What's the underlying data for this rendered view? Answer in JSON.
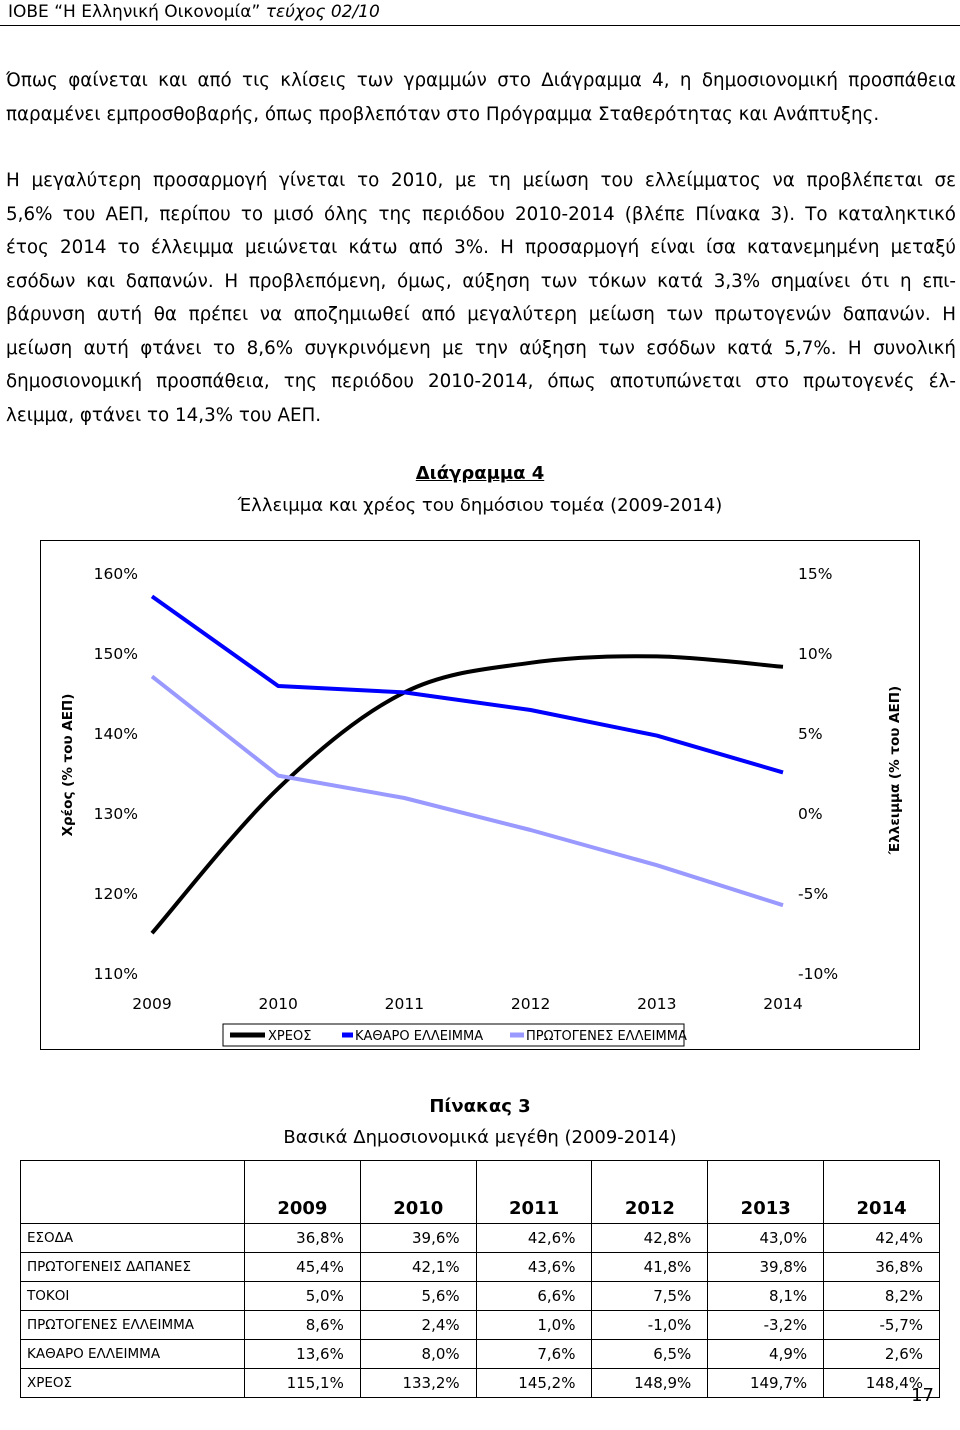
{
  "header": {
    "publication": "ΙΟΒΕ “Η Ελληνική Οικονομία”",
    "issue": "τεύχος 02/10"
  },
  "paragraphs": [
    {
      "lines": [
        "Όπως φαίνεται και από τις κλίσεις των γραμμών στο Διάγραμμα 4, η δημοσιονομική προσπάθεια",
        "παραμένει εμπροσθοβαρής, όπως προβλεπόταν στο Πρόγραμμα Σταθερότητας και Ανάπτυξης."
      ]
    },
    {
      "lines": [
        "Η μεγαλύτερη προσαρμογή γίνεται το 2010, με τη μείωση του ελλείμματος να προβλέπεται σε",
        "5,6% του ΑΕΠ, περίπου το μισό όλης της περιόδου 2010-2014 (βλέπε Πίνακα 3). Το καταληκτικό",
        "έτος 2014 το έλλειμμα μειώνεται κάτω από 3%. Η προσαρμογή είναι ίσα κατανεμημένη μεταξύ",
        "εσόδων και δαπανών. Η προβλεπόμενη, όμως, αύξηση των τόκων κατά 3,3% σημαίνει ότι η επι-",
        "βάρυνση αυτή θα πρέπει να αποζημιωθεί από μεγαλύτερη μείωση των πρωτογενών δαπανών. Η",
        "μείωση αυτή φτάνει το 8,6% συγκρινόμενη με την αύξηση των εσόδων κατά 5,7%. Η συνολική",
        "δημοσιονομική προσπάθεια, της περιόδου 2010-2014, όπως αποτυπώνεται στο πρωτογενές έλ-",
        "λειμμα, φτάνει το 14,3% του ΑΕΠ."
      ]
    }
  ],
  "figure": {
    "label": "Διάγραμμα 4",
    "caption": "Έλλειμμα και χρέος του δημόσιου τομέα (2009-2014)"
  },
  "chart_data": {
    "type": "line",
    "x": [
      "2009",
      "2010",
      "2011",
      "2012",
      "2013",
      "2014"
    ],
    "y_left": {
      "label": "Χρέος (% του ΑΕΠ)",
      "ticks": [
        "160%",
        "150%",
        "140%",
        "130%",
        "120%",
        "110%"
      ],
      "range": [
        110,
        160
      ]
    },
    "y_right": {
      "label": "Έλλειμμα (% του ΑΕΠ)",
      "ticks": [
        "15%",
        "10%",
        "5%",
        "0%",
        "-5%",
        "-10%"
      ],
      "range": [
        -10,
        15
      ]
    },
    "series": [
      {
        "name": "ΧΡΕΟΣ",
        "axis": "left",
        "color": "#000000",
        "smooth": true,
        "values": [
          115.1,
          133.2,
          145.2,
          148.9,
          149.7,
          148.4
        ]
      },
      {
        "name": "ΚΑΘΑΡΟ ΕΛΛΕΙΜΜΑ",
        "axis": "right",
        "color": "#0000ff",
        "smooth": false,
        "values": [
          13.6,
          8.0,
          7.6,
          6.5,
          4.9,
          2.6
        ]
      },
      {
        "name": "ΠΡΩΤΟΓΕΝΕΣ ΕΛΛΕΙΜΜΑ",
        "axis": "right",
        "color": "#9999ff",
        "smooth": false,
        "values": [
          8.6,
          2.4,
          1.0,
          -1.0,
          -3.2,
          -5.7
        ]
      }
    ],
    "legend": "bottom",
    "grid": false
  },
  "table": {
    "label": "Πίνακας 3",
    "caption": "Βασικά Δημοσιονομικά μεγέθη (2009-2014)",
    "columns": [
      "2009",
      "2010",
      "2011",
      "2012",
      "2013",
      "2014"
    ],
    "rows": [
      {
        "label": "ΕΣΟΔΑ",
        "values": [
          "36,8%",
          "39,6%",
          "42,6%",
          "42,8%",
          "43,0%",
          "42,4%"
        ]
      },
      {
        "label": "ΠΡΩΤΟΓΕΝΕΙΣ ΔΑΠΑΝΕΣ",
        "values": [
          "45,4%",
          "42,1%",
          "43,6%",
          "41,8%",
          "39,8%",
          "36,8%"
        ]
      },
      {
        "label": "ΤΟΚΟΙ",
        "values": [
          "5,0%",
          "5,6%",
          "6,6%",
          "7,5%",
          "8,1%",
          "8,2%"
        ]
      },
      {
        "label": "ΠΡΩΤΟΓΕΝΕΣ ΕΛΛΕΙΜΜΑ",
        "values": [
          "8,6%",
          "2,4%",
          "1,0%",
          "-1,0%",
          "-3,2%",
          "-5,7%"
        ]
      },
      {
        "label": "ΚΑΘΑΡΟ ΕΛΛΕΙΜΜΑ",
        "values": [
          "13,6%",
          "8,0%",
          "7,6%",
          "6,5%",
          "4,9%",
          "2,6%"
        ]
      },
      {
        "label": "ΧΡΕΟΣ",
        "values": [
          "115,1%",
          "133,2%",
          "145,2%",
          "148,9%",
          "149,7%",
          "148,4%"
        ]
      }
    ]
  },
  "page_number": "17"
}
